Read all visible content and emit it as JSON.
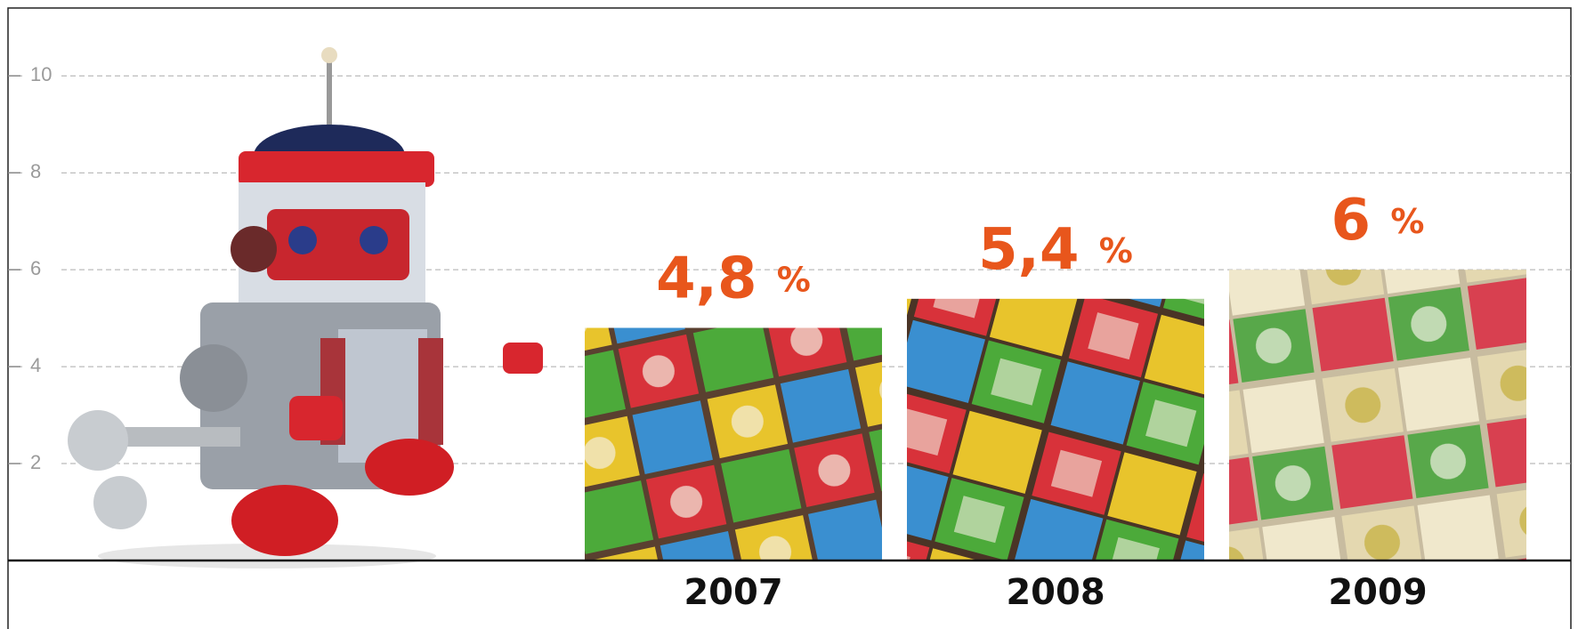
{
  "chart_data": {
    "type": "bar",
    "categories": [
      "2007",
      "2008",
      "2009"
    ],
    "values": [
      4.8,
      5.4,
      6
    ],
    "value_labels": [
      "4,8 %",
      "5,4 %",
      "6 %"
    ],
    "value_label_color": "#e8561c",
    "ylim": [
      0,
      11.4
    ],
    "yticks": [
      2,
      4,
      6,
      8,
      10
    ],
    "grid": true
  }
}
